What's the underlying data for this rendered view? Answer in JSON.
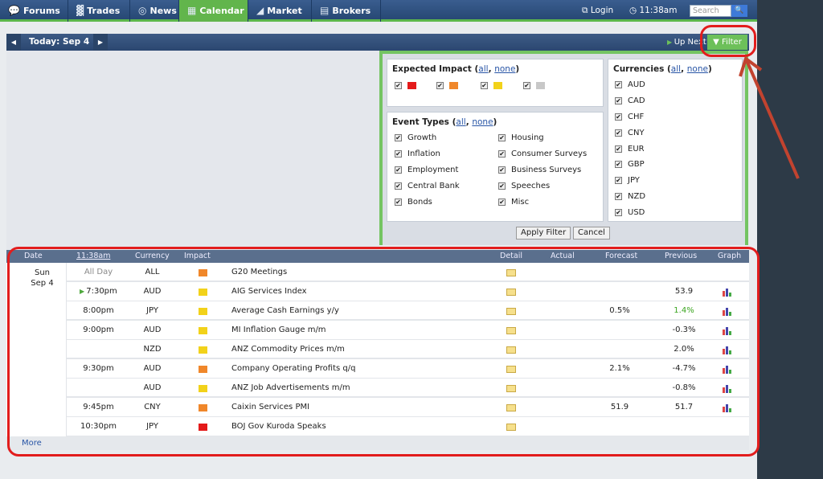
{
  "nav": {
    "tabs": [
      {
        "label": "Forums",
        "icon": "chat-icon"
      },
      {
        "label": "Trades",
        "icon": "trades-icon"
      },
      {
        "label": "News",
        "icon": "globe-icon"
      },
      {
        "label": "Calendar",
        "icon": "calendar-icon"
      },
      {
        "label": "Market",
        "icon": "chart-icon"
      },
      {
        "label": "Brokers",
        "icon": "brokers-icon"
      }
    ],
    "login": "Login",
    "time": "11:38am",
    "search_placeholder": "Search"
  },
  "datebar": {
    "today": "Today: Sep 4",
    "up_next": "Up Next",
    "filter": "Filter"
  },
  "filters": {
    "expected_impact": {
      "title": "Expected Impact",
      "all": "all",
      "none": "none",
      "levels": [
        "#e41a1a",
        "#f0872a",
        "#f2d21a",
        "#c8c8c8"
      ]
    },
    "event_types": {
      "title": "Event Types",
      "all": "all",
      "none": "none",
      "col1": [
        "Growth",
        "Inflation",
        "Employment",
        "Central Bank",
        "Bonds"
      ],
      "col2": [
        "Housing",
        "Consumer Surveys",
        "Business Surveys",
        "Speeches",
        "Misc"
      ]
    },
    "currencies": {
      "title": "Currencies",
      "all": "all",
      "none": "none",
      "items": [
        "AUD",
        "CAD",
        "CHF",
        "CNY",
        "EUR",
        "GBP",
        "JPY",
        "NZD",
        "USD"
      ]
    },
    "apply": "Apply Filter",
    "cancel": "Cancel"
  },
  "calendar": {
    "headers": {
      "date": "Date",
      "time": "11:38am",
      "currency": "Currency",
      "impact": "Impact",
      "detail": "Detail",
      "actual": "Actual",
      "forecast": "Forecast",
      "previous": "Previous",
      "graph": "Graph"
    },
    "day_name": "Sun",
    "day_date": "Sep 4",
    "rows": [
      {
        "time": "All Day",
        "currency": "ALL",
        "impact": "#f0872a",
        "event": "G20 Meetings",
        "forecast": "",
        "previous": "",
        "graph": false
      },
      {
        "time": "7:30pm",
        "currency": "AUD",
        "impact": "#f2d21a",
        "event": "AIG Services Index",
        "forecast": "",
        "previous": "53.9",
        "graph": true
      },
      {
        "time": "8:00pm",
        "currency": "JPY",
        "impact": "#f2d21a",
        "event": "Average Cash Earnings y/y",
        "forecast": "0.5%",
        "previous": "1.4%",
        "graph": true
      },
      {
        "time": "9:00pm",
        "currency": "AUD",
        "impact": "#f2d21a",
        "event": "MI Inflation Gauge m/m",
        "forecast": "",
        "previous": "-0.3%",
        "graph": true
      },
      {
        "time": "",
        "currency": "NZD",
        "impact": "#f2d21a",
        "event": "ANZ Commodity Prices m/m",
        "forecast": "",
        "previous": "2.0%",
        "graph": true
      },
      {
        "time": "9:30pm",
        "currency": "AUD",
        "impact": "#f0872a",
        "event": "Company Operating Profits q/q",
        "forecast": "2.1%",
        "previous": "-4.7%",
        "graph": true
      },
      {
        "time": "",
        "currency": "AUD",
        "impact": "#f2d21a",
        "event": "ANZ Job Advertisements m/m",
        "forecast": "",
        "previous": "-0.8%",
        "graph": true
      },
      {
        "time": "9:45pm",
        "currency": "CNY",
        "impact": "#f0872a",
        "event": "Caixin Services PMI",
        "forecast": "51.9",
        "previous": "51.7",
        "graph": true
      },
      {
        "time": "10:30pm",
        "currency": "JPY",
        "impact": "#e41a1a",
        "event": "BOJ Gov Kuroda Speaks",
        "forecast": "",
        "previous": "",
        "graph": false
      }
    ],
    "more": "More"
  }
}
